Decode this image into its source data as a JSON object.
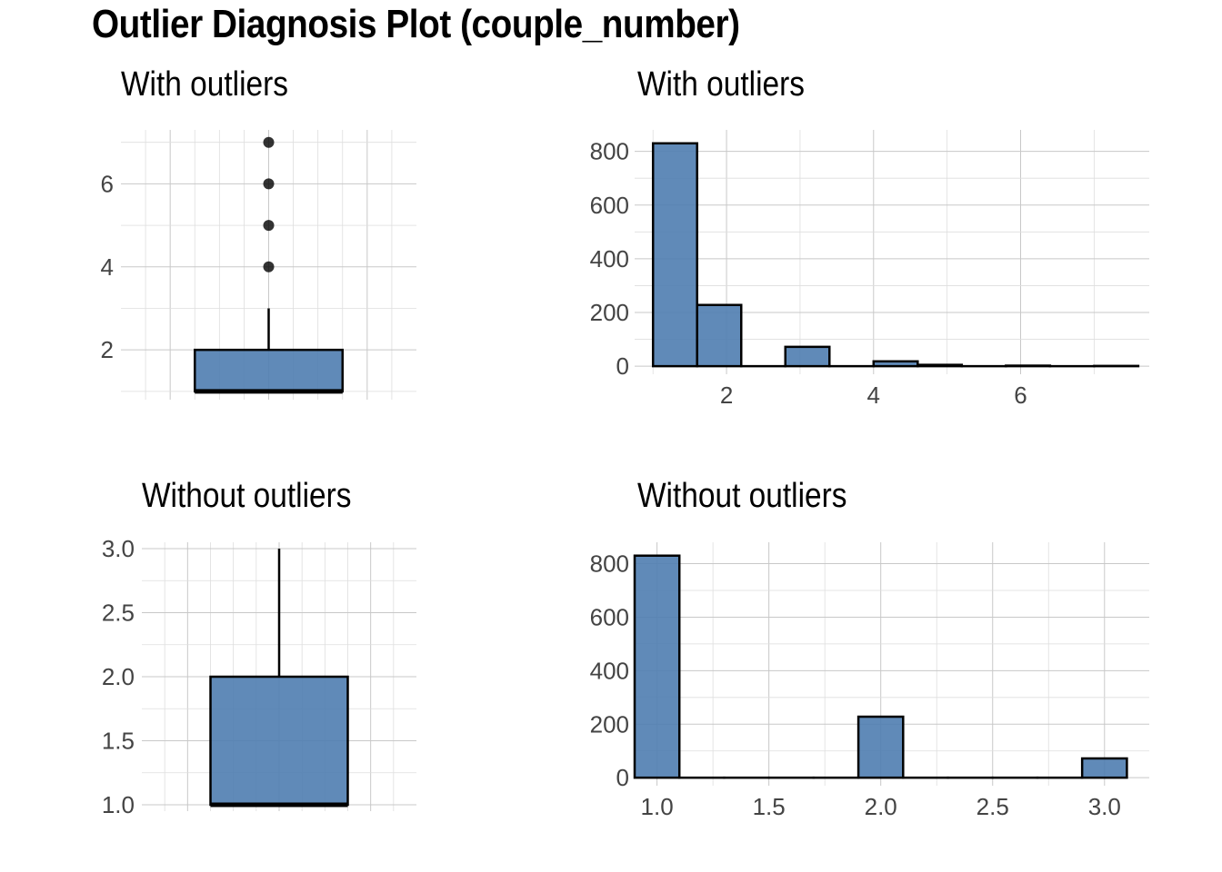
{
  "title": "Outlier Diagnosis Plot (couple_number)",
  "colors": {
    "fill": "#4f7db0",
    "outline": "#000000",
    "grid": "#c8c8c8"
  },
  "chart_data": [
    {
      "type": "box",
      "panel": "top-left",
      "title": "With outliers",
      "ylim": [
        0.8,
        7.3
      ],
      "yticks": [
        2,
        4,
        6
      ],
      "box": {
        "min": 1,
        "q1": 1,
        "median": 1,
        "q3": 2,
        "whisker_high": 3
      },
      "outliers": [
        4,
        5,
        6,
        7
      ],
      "grid": true
    },
    {
      "type": "bar",
      "panel": "top-right",
      "title": "With outliers",
      "xlim": [
        0.75,
        7.75
      ],
      "ylim": [
        -30,
        880
      ],
      "xticks": [
        2,
        4,
        6
      ],
      "yticks": [
        0,
        200,
        400,
        600,
        800
      ],
      "bin_width": 0.6,
      "bins": [
        {
          "start": 1.0,
          "end": 1.6,
          "count": 830
        },
        {
          "start": 1.6,
          "end": 2.2,
          "count": 228
        },
        {
          "start": 2.2,
          "end": 2.8,
          "count": 0
        },
        {
          "start": 2.8,
          "end": 3.4,
          "count": 72
        },
        {
          "start": 3.4,
          "end": 4.0,
          "count": 0
        },
        {
          "start": 4.0,
          "end": 4.6,
          "count": 18
        },
        {
          "start": 4.6,
          "end": 5.2,
          "count": 5
        },
        {
          "start": 5.2,
          "end": 5.8,
          "count": 0
        },
        {
          "start": 5.8,
          "end": 6.4,
          "count": 2
        },
        {
          "start": 6.4,
          "end": 7.0,
          "count": 0
        },
        {
          "start": 7.0,
          "end": 7.6,
          "count": 1
        }
      ],
      "grid": true
    },
    {
      "type": "box",
      "panel": "bottom-left",
      "title": "Without outliers",
      "ylim": [
        0.95,
        3.05
      ],
      "yticks": [
        1.0,
        1.5,
        2.0,
        2.5,
        3.0
      ],
      "box": {
        "min": 1,
        "q1": 1,
        "median": 1,
        "q3": 2,
        "whisker_high": 3
      },
      "outliers": [],
      "grid": true
    },
    {
      "type": "bar",
      "panel": "bottom-right",
      "title": "Without outliers",
      "xlim": [
        0.9,
        3.2
      ],
      "ylim": [
        -30,
        880
      ],
      "xticks": [
        1.0,
        1.5,
        2.0,
        2.5,
        3.0
      ],
      "yticks": [
        0,
        200,
        400,
        600,
        800
      ],
      "bin_width": 0.2,
      "bins": [
        {
          "start": 0.9,
          "end": 1.1,
          "count": 830
        },
        {
          "start": 1.1,
          "end": 1.3,
          "count": 0
        },
        {
          "start": 1.3,
          "end": 1.5,
          "count": 0
        },
        {
          "start": 1.5,
          "end": 1.7,
          "count": 0
        },
        {
          "start": 1.7,
          "end": 1.9,
          "count": 0
        },
        {
          "start": 1.9,
          "end": 2.1,
          "count": 228
        },
        {
          "start": 2.1,
          "end": 2.3,
          "count": 0
        },
        {
          "start": 2.3,
          "end": 2.5,
          "count": 0
        },
        {
          "start": 2.5,
          "end": 2.7,
          "count": 0
        },
        {
          "start": 2.7,
          "end": 2.9,
          "count": 0
        },
        {
          "start": 2.9,
          "end": 3.1,
          "count": 72
        }
      ],
      "grid": true
    }
  ]
}
